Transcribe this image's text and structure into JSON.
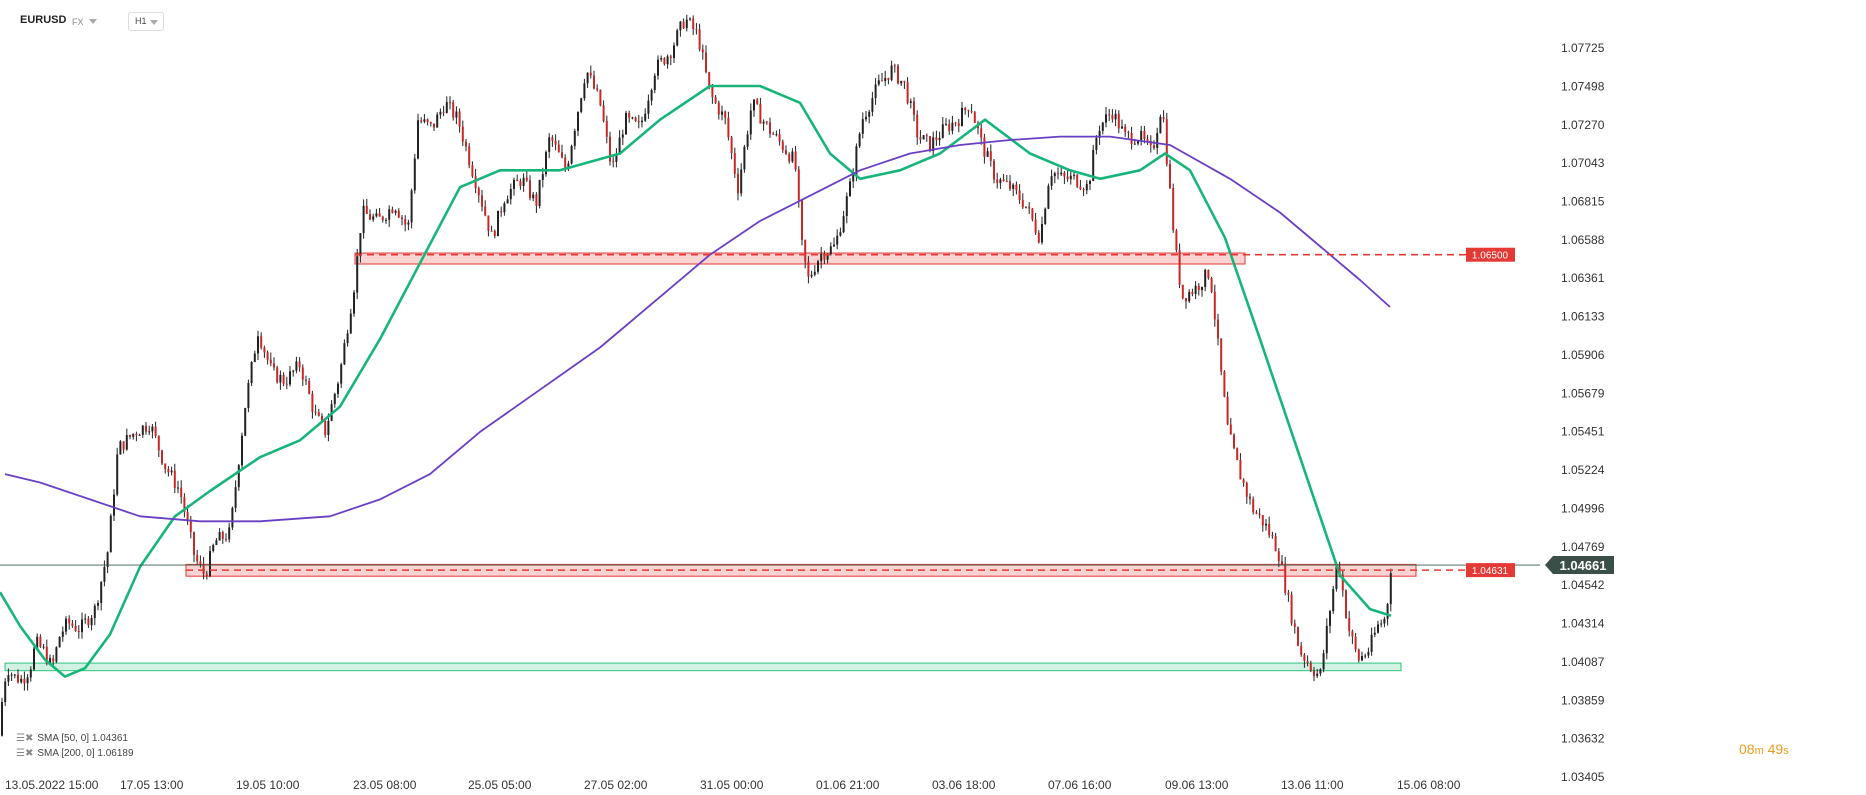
{
  "header": {
    "symbol": "EURUSD",
    "market": "FX",
    "timeframe": "H1"
  },
  "legend": [
    {
      "text": "SMA [50, 0] 1.04361"
    },
    {
      "text": "SMA [200, 0] 1.06189"
    }
  ],
  "timer": {
    "minutes": "08",
    "min_unit": "m",
    "seconds": "49",
    "sec_unit": "s"
  },
  "colors": {
    "sma50": "#18b57a",
    "sma200": "#6a3fc4",
    "candle_up": "#222222",
    "candle_down": "#c62828",
    "resistance": "#e53935",
    "support": "#2ec27e"
  },
  "chart_data": {
    "type": "candlestick",
    "symbol": "EURUSD",
    "timeframe": "H1",
    "y_ticks": [
      "1.07725",
      "1.07498",
      "1.07270",
      "1.07043",
      "1.06815",
      "1.06588",
      "1.06361",
      "1.06133",
      "1.05906",
      "1.05679",
      "1.05451",
      "1.05224",
      "1.04996",
      "1.04769",
      "1.04542",
      "1.04314",
      "1.04087",
      "1.03859",
      "1.03632",
      "1.03405"
    ],
    "ylim": [
      1.03405,
      1.07725
    ],
    "x_ticks": [
      "13.05.2022 15:00",
      "17.05 13:00",
      "19.05 10:00",
      "23.05 08:00",
      "25.05 05:00",
      "27.05 02:00",
      "31.05 00:00",
      "01.06 21:00",
      "03.06 18:00",
      "07.06 16:00",
      "09.06 13:00",
      "13.06 11:00",
      "15.06 08:00"
    ],
    "current_price": "1.04661",
    "price_path": [
      [
        0,
        1.0365
      ],
      [
        3,
        1.0395
      ],
      [
        8,
        1.0405
      ],
      [
        14,
        1.04
      ],
      [
        22,
        1.0398
      ],
      [
        30,
        1.0405
      ],
      [
        36,
        1.042
      ],
      [
        44,
        1.0415
      ],
      [
        52,
        1.0405
      ],
      [
        60,
        1.0425
      ],
      [
        68,
        1.0432
      ],
      [
        80,
        1.0428
      ],
      [
        95,
        1.044
      ],
      [
        108,
        1.0475
      ],
      [
        118,
        1.0535
      ],
      [
        135,
        1.0545
      ],
      [
        150,
        1.055
      ],
      [
        165,
        1.0525
      ],
      [
        180,
        1.051
      ],
      [
        195,
        1.047
      ],
      [
        205,
        1.046
      ],
      [
        215,
        1.048
      ],
      [
        230,
        1.0485
      ],
      [
        245,
        1.056
      ],
      [
        258,
        1.0605
      ],
      [
        272,
        1.058
      ],
      [
        285,
        1.0575
      ],
      [
        300,
        1.0585
      ],
      [
        315,
        1.0555
      ],
      [
        325,
        1.0545
      ],
      [
        340,
        1.058
      ],
      [
        355,
        1.0635
      ],
      [
        362,
        1.0675
      ],
      [
        378,
        1.067
      ],
      [
        395,
        1.068
      ],
      [
        408,
        1.0665
      ],
      [
        418,
        1.073
      ],
      [
        432,
        1.0725
      ],
      [
        445,
        1.074
      ],
      [
        458,
        1.073
      ],
      [
        470,
        1.0705
      ],
      [
        480,
        1.0685
      ],
      [
        492,
        1.066
      ],
      [
        505,
        1.0685
      ],
      [
        522,
        1.0695
      ],
      [
        536,
        1.068
      ],
      [
        550,
        1.072
      ],
      [
        566,
        1.07
      ],
      [
        586,
        1.076
      ],
      [
        600,
        1.074
      ],
      [
        612,
        1.07
      ],
      [
        625,
        1.073
      ],
      [
        640,
        1.0725
      ],
      [
        655,
        1.076
      ],
      [
        670,
        1.077
      ],
      [
        685,
        1.079
      ],
      [
        698,
        1.078
      ],
      [
        710,
        1.0745
      ],
      [
        725,
        1.073
      ],
      [
        738,
        1.069
      ],
      [
        752,
        1.074
      ],
      [
        768,
        1.0725
      ],
      [
        782,
        1.0715
      ],
      [
        795,
        1.0705
      ],
      [
        802,
        1.0655
      ],
      [
        808,
        1.0635
      ],
      [
        820,
        1.065
      ],
      [
        835,
        1.0655
      ],
      [
        850,
        1.069
      ],
      [
        862,
        1.073
      ],
      [
        878,
        1.075
      ],
      [
        892,
        1.076
      ],
      [
        905,
        1.075
      ],
      [
        918,
        1.072
      ],
      [
        930,
        1.0715
      ],
      [
        945,
        1.0725
      ],
      [
        958,
        1.073
      ],
      [
        970,
        1.074
      ],
      [
        982,
        1.0715
      ],
      [
        996,
        1.0695
      ],
      [
        1010,
        1.069
      ],
      [
        1025,
        1.068
      ],
      [
        1040,
        1.066
      ],
      [
        1050,
        1.07
      ],
      [
        1063,
        1.0695
      ],
      [
        1075,
        1.0695
      ],
      [
        1088,
        1.069
      ],
      [
        1098,
        1.0725
      ],
      [
        1112,
        1.0735
      ],
      [
        1125,
        1.072
      ],
      [
        1140,
        1.072
      ],
      [
        1152,
        1.071
      ],
      [
        1162,
        1.074
      ],
      [
        1168,
        1.07
      ],
      [
        1175,
        1.0655
      ],
      [
        1182,
        1.0625
      ],
      [
        1195,
        1.063
      ],
      [
        1210,
        1.064
      ],
      [
        1220,
        1.0585
      ],
      [
        1228,
        1.0545
      ],
      [
        1240,
        1.052
      ],
      [
        1252,
        1.05
      ],
      [
        1265,
        1.049
      ],
      [
        1278,
        1.0475
      ],
      [
        1290,
        1.044
      ],
      [
        1300,
        1.0415
      ],
      [
        1312,
        1.0405
      ],
      [
        1320,
        1.04
      ],
      [
        1330,
        1.044
      ],
      [
        1338,
        1.047
      ],
      [
        1348,
        1.043
      ],
      [
        1358,
        1.041
      ],
      [
        1368,
        1.0415
      ],
      [
        1378,
        1.043
      ],
      [
        1386,
        1.0435
      ],
      [
        1391,
        1.0466
      ]
    ],
    "series": [
      {
        "name": "SMA [50, 0]",
        "value": "1.04361",
        "points": [
          [
            0,
            1.045
          ],
          [
            20,
            1.043
          ],
          [
            45,
            1.041
          ],
          [
            65,
            1.04
          ],
          [
            85,
            1.0405
          ],
          [
            110,
            1.0425
          ],
          [
            140,
            1.0465
          ],
          [
            175,
            1.0495
          ],
          [
            210,
            1.051
          ],
          [
            260,
            1.053
          ],
          [
            300,
            1.054
          ],
          [
            340,
            1.056
          ],
          [
            380,
            1.06
          ],
          [
            420,
            1.0645
          ],
          [
            460,
            1.069
          ],
          [
            500,
            1.07
          ],
          [
            560,
            1.07
          ],
          [
            620,
            1.071
          ],
          [
            660,
            1.073
          ],
          [
            710,
            1.075
          ],
          [
            760,
            1.075
          ],
          [
            800,
            1.074
          ],
          [
            830,
            1.071
          ],
          [
            860,
            1.0695
          ],
          [
            900,
            1.07
          ],
          [
            940,
            1.071
          ],
          [
            985,
            1.073
          ],
          [
            1030,
            1.071
          ],
          [
            1070,
            1.07
          ],
          [
            1100,
            1.0695
          ],
          [
            1140,
            1.07
          ],
          [
            1165,
            1.071
          ],
          [
            1190,
            1.07
          ],
          [
            1225,
            1.066
          ],
          [
            1260,
            1.06
          ],
          [
            1300,
            1.053
          ],
          [
            1340,
            1.046
          ],
          [
            1370,
            1.044
          ],
          [
            1391,
            1.0436
          ]
        ]
      },
      {
        "name": "SMA [200, 0]",
        "value": "1.06189",
        "points": [
          [
            5,
            1.052
          ],
          [
            40,
            1.0515
          ],
          [
            90,
            1.0505
          ],
          [
            140,
            1.0495
          ],
          [
            200,
            1.0492
          ],
          [
            260,
            1.0492
          ],
          [
            330,
            1.0495
          ],
          [
            380,
            1.0505
          ],
          [
            430,
            1.052
          ],
          [
            480,
            1.0545
          ],
          [
            540,
            1.057
          ],
          [
            600,
            1.0595
          ],
          [
            660,
            1.0625
          ],
          [
            710,
            1.065
          ],
          [
            760,
            1.067
          ],
          [
            810,
            1.0685
          ],
          [
            860,
            1.07
          ],
          [
            910,
            1.071
          ],
          [
            960,
            1.0715
          ],
          [
            1010,
            1.0718
          ],
          [
            1060,
            1.072
          ],
          [
            1110,
            1.072
          ],
          [
            1170,
            1.0715
          ],
          [
            1230,
            1.0695
          ],
          [
            1280,
            1.0675
          ],
          [
            1330,
            1.065
          ],
          [
            1360,
            1.0635
          ],
          [
            1390,
            1.0619
          ]
        ]
      }
    ],
    "annotations": [
      {
        "label": "1.06500",
        "level": 1.065,
        "zone": [
          1.06445,
          1.0651
        ],
        "zone_x": [
          355,
          1245
        ]
      },
      {
        "label": "1.04631",
        "level": 1.04631,
        "zone": [
          1.04595,
          1.04665
        ],
        "zone_x": [
          186,
          1416
        ]
      },
      {
        "label": "",
        "level": 1.0407,
        "zone": [
          1.04035,
          1.0408
        ],
        "zone_x": [
          5,
          1401
        ]
      }
    ],
    "grid": false
  }
}
